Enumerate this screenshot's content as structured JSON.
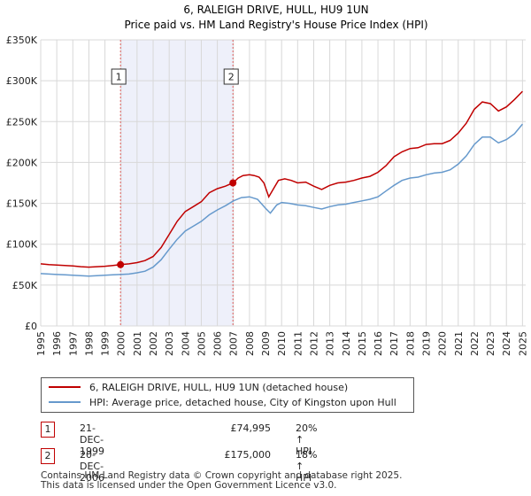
{
  "chart_data": {
    "type": "line",
    "title": "6, RALEIGH DRIVE, HULL, HU9 1UN",
    "subtitle": "Price paid vs. HM Land Registry's House Price Index (HPI)",
    "xlim": [
      1995,
      2025.2
    ],
    "ylim": [
      0,
      350000
    ],
    "x_ticks": [
      1995,
      1996,
      1997,
      1998,
      1999,
      2000,
      2001,
      2002,
      2003,
      2004,
      2005,
      2006,
      2007,
      2008,
      2009,
      2010,
      2011,
      2012,
      2013,
      2014,
      2015,
      2016,
      2017,
      2018,
      2019,
      2020,
      2021,
      2022,
      2023,
      2024,
      2025
    ],
    "y_ticks": [
      {
        "value": 0,
        "label": "£0"
      },
      {
        "value": 50000,
        "label": "£50K"
      },
      {
        "value": 100000,
        "label": "£100K"
      },
      {
        "value": 150000,
        "label": "£150K"
      },
      {
        "value": 200000,
        "label": "£200K"
      },
      {
        "value": 250000,
        "label": "£250K"
      },
      {
        "value": 300000,
        "label": "£300K"
      },
      {
        "value": 350000,
        "label": "£350K"
      }
    ],
    "shaded_region": {
      "x": [
        1999.97,
        2006.97
      ]
    },
    "series": [
      {
        "name": "6, RALEIGH DRIVE, HULL, HU9 1UN (detached house)",
        "color": "#c00000",
        "x": [
          1995,
          1995.5,
          1996,
          1996.5,
          1997,
          1997.5,
          1998,
          1998.5,
          1999,
          1999.5,
          1999.97,
          2000.5,
          2001,
          2001.5,
          2002,
          2002.5,
          2003,
          2003.5,
          2004,
          2004.5,
          2005,
          2005.5,
          2006,
          2006.5,
          2006.97,
          2007.3,
          2007.6,
          2008,
          2008.3,
          2008.6,
          2008.9,
          2009.2,
          2009.5,
          2009.8,
          2010.2,
          2010.6,
          2011,
          2011.5,
          2012,
          2012.5,
          2013,
          2013.5,
          2014,
          2014.5,
          2015,
          2015.5,
          2016,
          2016.5,
          2017,
          2017.5,
          2018,
          2018.5,
          2019,
          2019.5,
          2020,
          2020.5,
          2021,
          2021.5,
          2022,
          2022.5,
          2023,
          2023.5,
          2024,
          2024.5,
          2025
        ],
        "values": [
          76000,
          75000,
          74500,
          74000,
          73500,
          72500,
          72000,
          72500,
          73000,
          74000,
          74995,
          76000,
          77500,
          80000,
          85000,
          96000,
          112000,
          128000,
          140000,
          146000,
          152000,
          163000,
          168000,
          171000,
          175000,
          181000,
          184000,
          185000,
          184000,
          182000,
          175000,
          158000,
          168000,
          178000,
          180000,
          178000,
          175000,
          176000,
          171000,
          167000,
          172000,
          175000,
          176000,
          178000,
          181000,
          183000,
          188000,
          196000,
          207000,
          213000,
          217000,
          218000,
          222000,
          223000,
          223000,
          227000,
          236000,
          248000,
          265000,
          274000,
          272000,
          263000,
          268000,
          277000,
          287000
        ]
      },
      {
        "name": "HPI: Average price, detached house, City of Kingston upon Hull",
        "color": "#6699cc",
        "x": [
          1995,
          1995.5,
          1996,
          1996.5,
          1997,
          1997.5,
          1998,
          1998.5,
          1999,
          1999.5,
          2000,
          2000.5,
          2001,
          2001.5,
          2002,
          2002.5,
          2003,
          2003.5,
          2004,
          2004.5,
          2005,
          2005.5,
          2006,
          2006.5,
          2007,
          2007.5,
          2008,
          2008.5,
          2009,
          2009.3,
          2009.7,
          2010,
          2010.5,
          2011,
          2011.5,
          2012,
          2012.5,
          2013,
          2013.5,
          2014,
          2014.5,
          2015,
          2015.5,
          2016,
          2016.5,
          2017,
          2017.5,
          2018,
          2018.5,
          2019,
          2019.5,
          2020,
          2020.5,
          2021,
          2021.5,
          2022,
          2022.5,
          2023,
          2023.5,
          2024,
          2024.5,
          2025
        ],
        "values": [
          64000,
          63500,
          63000,
          62500,
          62000,
          61500,
          61000,
          61500,
          62000,
          62500,
          63000,
          63500,
          65000,
          67000,
          72000,
          81000,
          94000,
          106000,
          116000,
          122000,
          128000,
          136000,
          142000,
          147000,
          153000,
          157000,
          158000,
          155000,
          144000,
          138000,
          148000,
          151000,
          150000,
          148000,
          147000,
          145000,
          143000,
          146000,
          148000,
          149000,
          151000,
          153000,
          155000,
          158000,
          165000,
          172000,
          178000,
          181000,
          182000,
          185000,
          187000,
          188000,
          191000,
          198000,
          208000,
          222000,
          231000,
          231000,
          224000,
          228000,
          235000,
          247000
        ]
      }
    ],
    "annotations": [
      {
        "label": "1",
        "x": 1999.97,
        "value": 74995
      },
      {
        "label": "2",
        "x": 2006.97,
        "value": 175000
      }
    ]
  },
  "transactions": [
    {
      "id": "1",
      "date": "21-DEC-1999",
      "price": "£74,995",
      "hpi": "20% ↑ HPI"
    },
    {
      "id": "2",
      "date": "20-DEC-2006",
      "price": "£175,000",
      "hpi": "18% ↑ HPI"
    }
  ],
  "footer": {
    "line1": "Contains HM Land Registry data © Crown copyright and database right 2025.",
    "line2": "This data is licensed under the Open Government Licence v3.0."
  },
  "colors": {
    "price_line": "#c00000",
    "hpi_line": "#6699cc",
    "shade": "#eef0fa",
    "grid": "#d8d8d8"
  }
}
